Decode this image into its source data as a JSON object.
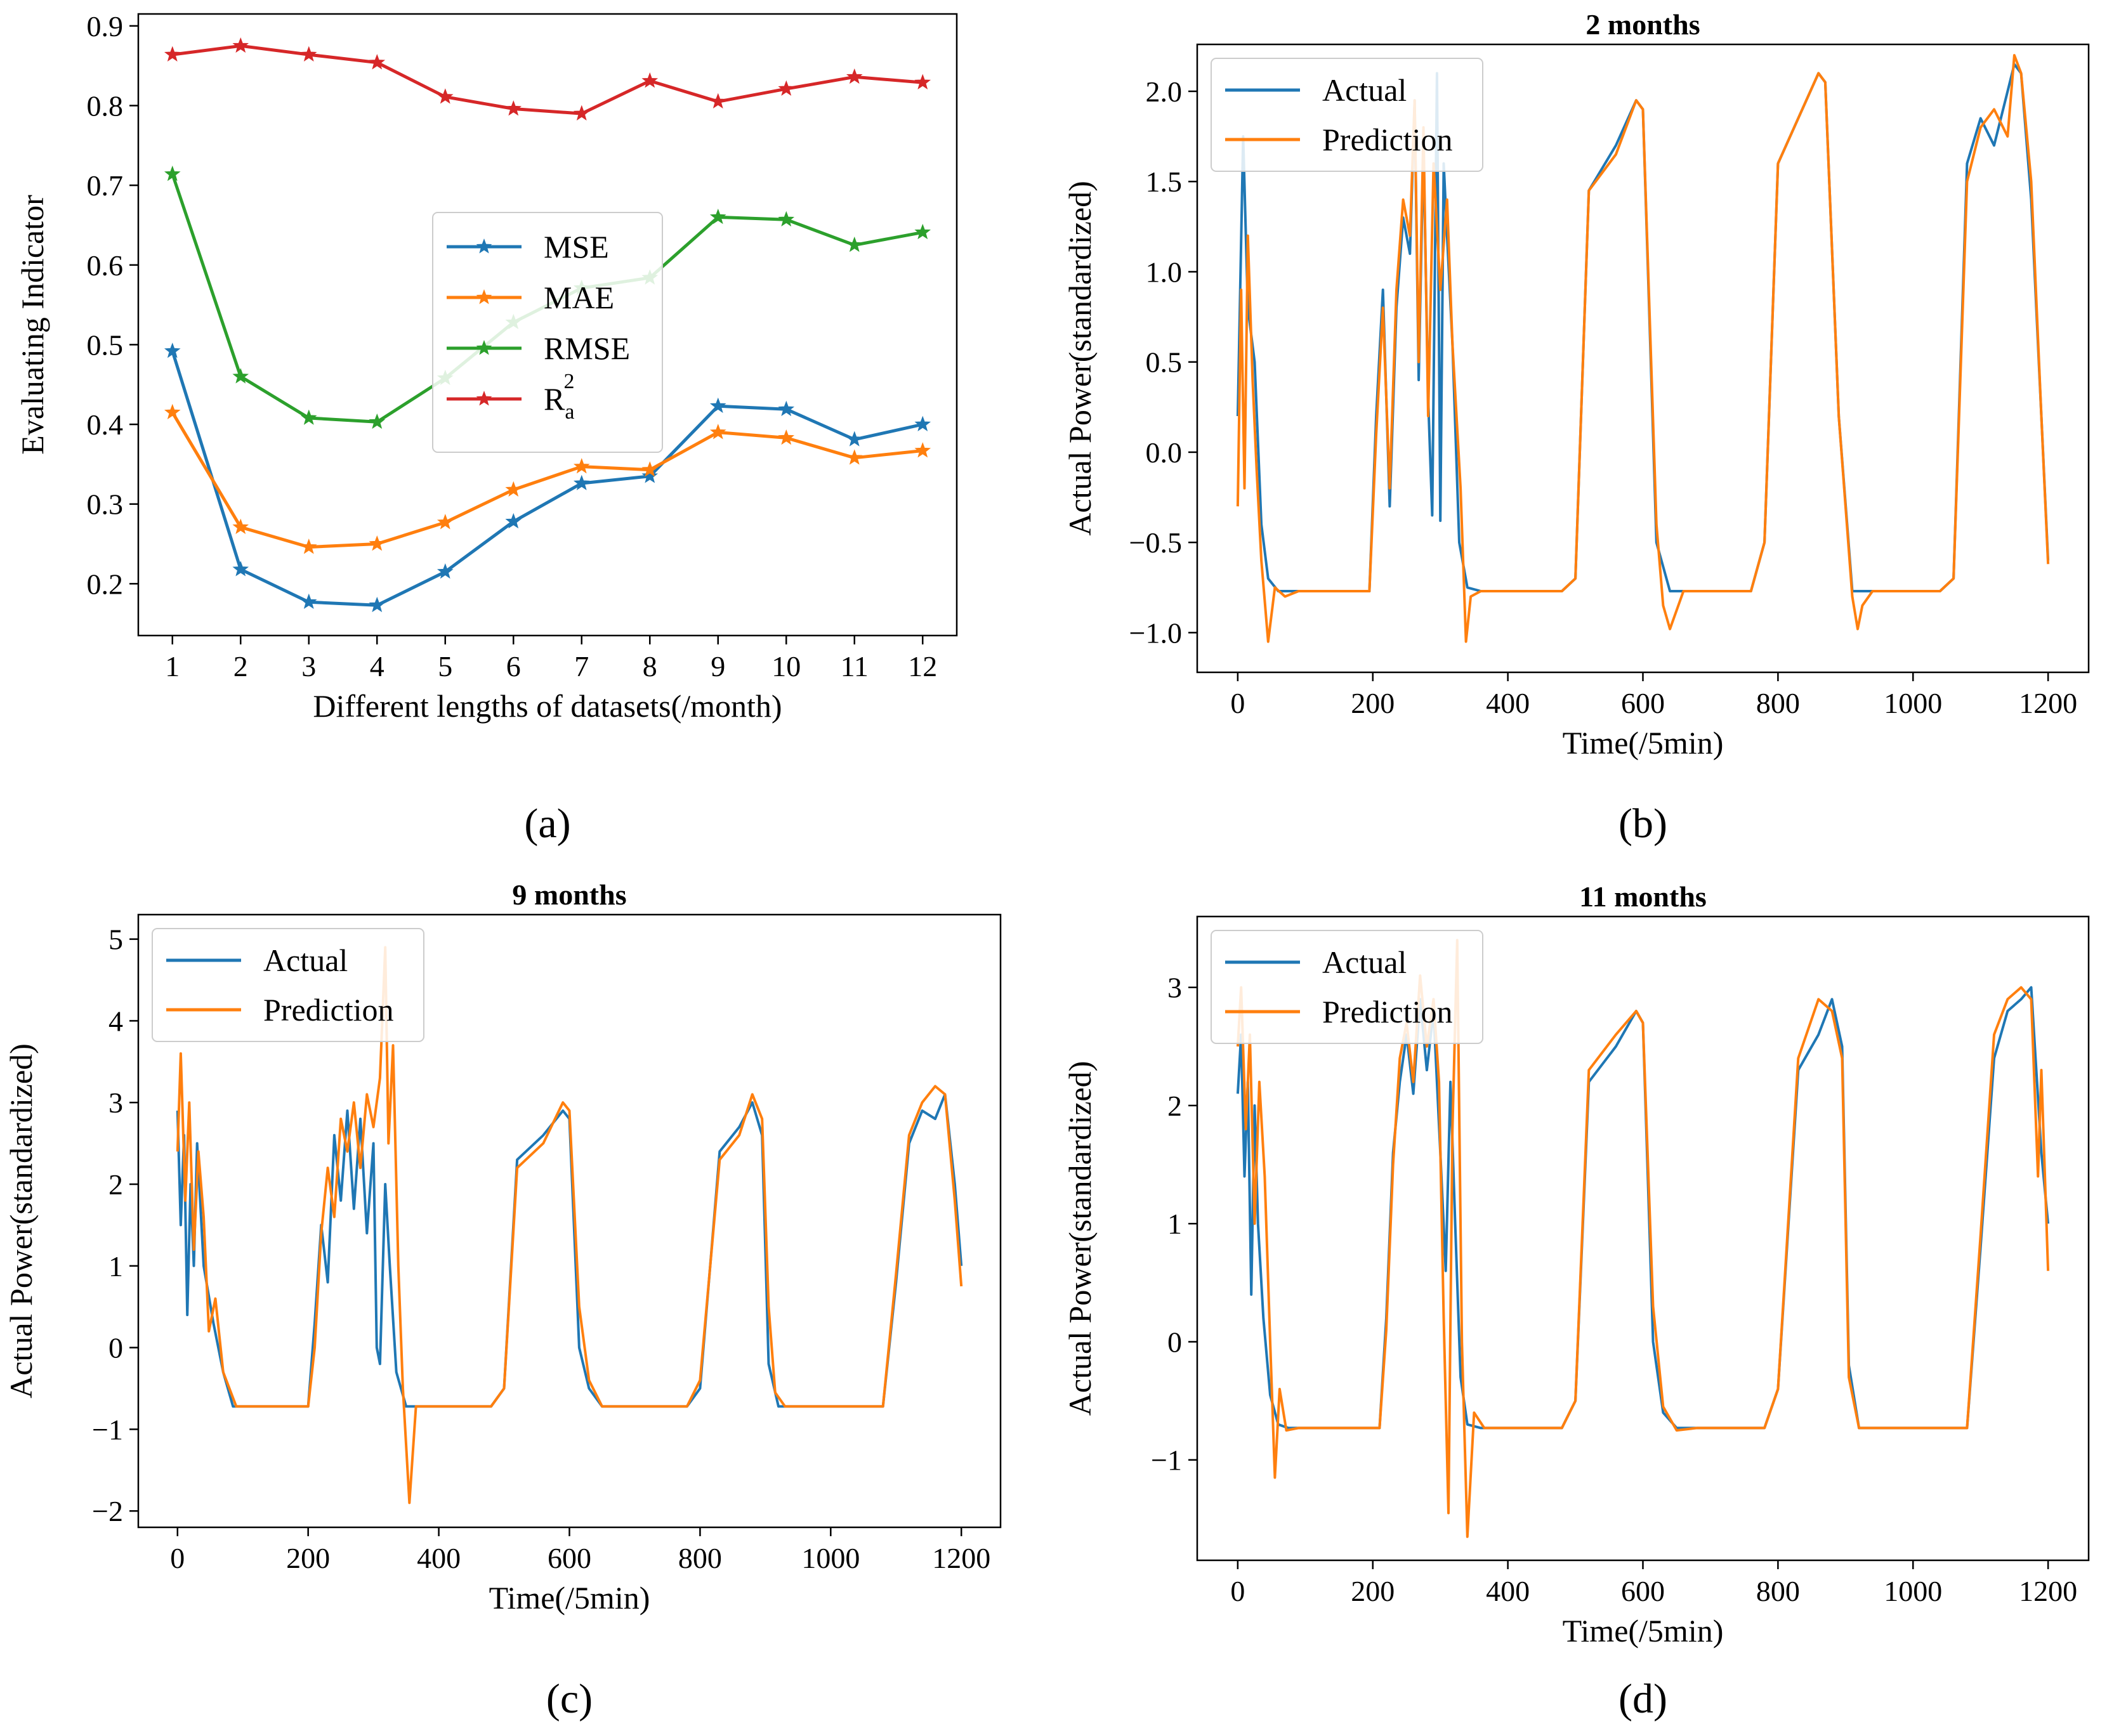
{
  "chart_data": [
    {
      "panel": "(a)",
      "type": "line",
      "title": "",
      "xlabel": "Different lengths of datasets(/month)",
      "ylabel": "Evaluating Indicator",
      "xlim": [
        0.5,
        12.5
      ],
      "ylim": [
        0.135,
        0.915
      ],
      "xticks": [
        1,
        2,
        3,
        4,
        5,
        6,
        7,
        8,
        9,
        10,
        11,
        12
      ],
      "yticks": [
        0.2,
        0.3,
        0.4,
        0.5,
        0.6,
        0.7,
        0.8,
        0.9
      ],
      "grid": false,
      "legend_position": "center-right",
      "x": [
        1,
        2,
        3,
        4,
        5,
        6,
        7,
        8,
        9,
        10,
        11,
        12
      ],
      "series": [
        {
          "name": "MSE",
          "color": "#1f77b4",
          "marker": "star",
          "values": [
            0.492,
            0.218,
            0.177,
            0.173,
            0.215,
            0.278,
            0.326,
            0.335,
            0.423,
            0.419,
            0.381,
            0.4
          ]
        },
        {
          "name": "MAE",
          "color": "#ff7f0e",
          "marker": "star",
          "values": [
            0.415,
            0.271,
            0.246,
            0.25,
            0.277,
            0.318,
            0.347,
            0.343,
            0.39,
            0.383,
            0.358,
            0.367
          ]
        },
        {
          "name": "RMSE",
          "color": "#2ca02c",
          "marker": "star",
          "values": [
            0.714,
            0.46,
            0.408,
            0.403,
            0.458,
            0.528,
            0.571,
            0.584,
            0.66,
            0.657,
            0.625,
            0.641
          ]
        },
        {
          "name": "R",
          "name_sup": "2",
          "name_sub": "a",
          "color": "#d62728",
          "marker": "star",
          "values": [
            0.864,
            0.875,
            0.864,
            0.854,
            0.811,
            0.796,
            0.79,
            0.831,
            0.805,
            0.821,
            0.836,
            0.829
          ]
        }
      ],
      "caption": "(a)"
    },
    {
      "panel": "(b)",
      "type": "line",
      "title": "2 months",
      "xlabel": "Time(/5min)",
      "ylabel": "Actual Power(standardized)",
      "xlim": [
        -60,
        1260
      ],
      "ylim": [
        -1.22,
        2.26
      ],
      "xticks": [
        0,
        200,
        400,
        600,
        800,
        1000,
        1200
      ],
      "yticks": [
        -1.0,
        -0.5,
        0.0,
        0.5,
        1.0,
        1.5,
        2.0
      ],
      "ytick_labels": [
        "−1.0",
        "−0.5",
        "0.0",
        "0.5",
        "1.0",
        "1.5",
        "2.0"
      ],
      "grid": false,
      "legend_position": "upper-left",
      "series": [
        {
          "name": "Actual",
          "color": "#1f77b4",
          "x": [
            0,
            8,
            15,
            25,
            35,
            45,
            60,
            80,
            150,
            195,
            205,
            215,
            225,
            235,
            245,
            255,
            262,
            268,
            275,
            282,
            288,
            295,
            300,
            305,
            310,
            318,
            328,
            340,
            360,
            400,
            480,
            500,
            520,
            560,
            590,
            600,
            620,
            640,
            680,
            760,
            780,
            800,
            830,
            860,
            870,
            890,
            910,
            930,
            1040,
            1060,
            1080,
            1100,
            1120,
            1140,
            1150,
            1160,
            1175,
            1190,
            1200
          ],
          "values": [
            0.2,
            1.75,
            0.8,
            0.5,
            -0.4,
            -0.7,
            -0.77,
            -0.77,
            -0.77,
            -0.77,
            0.2,
            0.9,
            -0.3,
            0.8,
            1.3,
            1.1,
            1.95,
            0.4,
            1.7,
            0.3,
            -0.35,
            2.1,
            -0.38,
            1.6,
            1.2,
            0.6,
            -0.5,
            -0.75,
            -0.77,
            -0.77,
            -0.77,
            -0.7,
            1.45,
            1.7,
            1.95,
            1.9,
            -0.5,
            -0.77,
            -0.77,
            -0.77,
            -0.5,
            1.6,
            1.85,
            2.1,
            2.05,
            0.2,
            -0.77,
            -0.77,
            -0.77,
            -0.7,
            1.6,
            1.85,
            1.7,
            2.0,
            2.15,
            2.1,
            1.4,
            0.2,
            -0.6
          ]
        },
        {
          "name": "Prediction",
          "color": "#ff7f0e",
          "x": [
            0,
            5,
            10,
            15,
            22,
            28,
            35,
            45,
            55,
            70,
            90,
            150,
            195,
            205,
            215,
            225,
            235,
            245,
            255,
            262,
            268,
            275,
            282,
            290,
            300,
            310,
            318,
            330,
            338,
            345,
            360,
            400,
            480,
            500,
            520,
            560,
            590,
            600,
            620,
            630,
            640,
            660,
            680,
            760,
            780,
            800,
            830,
            860,
            870,
            890,
            910,
            918,
            925,
            940,
            1040,
            1060,
            1080,
            1100,
            1120,
            1140,
            1150,
            1160,
            1175,
            1190,
            1200
          ],
          "values": [
            -0.3,
            0.9,
            -0.2,
            1.2,
            0.4,
            -0.1,
            -0.6,
            -1.05,
            -0.75,
            -0.8,
            -0.77,
            -0.77,
            -0.77,
            0.1,
            0.8,
            -0.2,
            0.9,
            1.4,
            1.2,
            1.95,
            0.5,
            1.8,
            0.2,
            1.6,
            0.9,
            1.4,
            0.6,
            -0.2,
            -1.05,
            -0.8,
            -0.77,
            -0.77,
            -0.77,
            -0.7,
            1.45,
            1.65,
            1.95,
            1.9,
            -0.4,
            -0.85,
            -0.98,
            -0.77,
            -0.77,
            -0.77,
            -0.5,
            1.6,
            1.85,
            2.1,
            2.05,
            0.2,
            -0.8,
            -0.98,
            -0.85,
            -0.77,
            -0.77,
            -0.7,
            1.5,
            1.8,
            1.9,
            1.75,
            2.2,
            2.1,
            1.5,
            0.2,
            -0.62
          ]
        }
      ],
      "caption": "(b)"
    },
    {
      "panel": "(c)",
      "type": "line",
      "title": "9 months",
      "xlabel": "Time(/5min)",
      "ylabel": "Actual Power(standardized)",
      "xlim": [
        -60,
        1260
      ],
      "ylim": [
        -2.2,
        5.3
      ],
      "xticks": [
        0,
        200,
        400,
        600,
        800,
        1000,
        1200
      ],
      "yticks": [
        -2,
        -1,
        0,
        1,
        2,
        3,
        4,
        5
      ],
      "ytick_labels": [
        "−2",
        "−1",
        "0",
        "1",
        "2",
        "3",
        "4",
        "5"
      ],
      "grid": false,
      "legend_position": "upper-left",
      "series": [
        {
          "name": "Actual",
          "color": "#1f77b4",
          "x": [
            0,
            5,
            10,
            15,
            20,
            25,
            30,
            40,
            55,
            70,
            85,
            150,
            200,
            210,
            220,
            230,
            240,
            250,
            260,
            270,
            280,
            290,
            300,
            305,
            310,
            318,
            325,
            335,
            350,
            380,
            480,
            500,
            520,
            560,
            590,
            600,
            615,
            630,
            650,
            680,
            780,
            800,
            830,
            860,
            880,
            895,
            905,
            920,
            1080,
            1100,
            1120,
            1140,
            1160,
            1175,
            1190,
            1200
          ],
          "values": [
            2.9,
            1.5,
            2.6,
            0.4,
            2.0,
            1.0,
            2.5,
            1.0,
            0.3,
            -0.3,
            -0.72,
            -0.72,
            -0.72,
            0.3,
            1.5,
            0.8,
            2.6,
            1.8,
            2.9,
            1.7,
            2.8,
            1.4,
            2.5,
            0.0,
            -0.2,
            2.0,
            1.0,
            -0.3,
            -0.72,
            -0.72,
            -0.72,
            -0.5,
            2.3,
            2.6,
            2.9,
            2.8,
            0.0,
            -0.5,
            -0.72,
            -0.72,
            -0.72,
            -0.5,
            2.4,
            2.7,
            3.0,
            2.6,
            -0.2,
            -0.72,
            -0.72,
            0.8,
            2.5,
            2.9,
            2.8,
            3.1,
            2.0,
            1.0
          ]
        },
        {
          "name": "Prediction",
          "color": "#ff7f0e",
          "x": [
            0,
            5,
            12,
            18,
            25,
            32,
            40,
            48,
            58,
            70,
            90,
            150,
            200,
            210,
            220,
            230,
            240,
            250,
            260,
            270,
            280,
            290,
            300,
            310,
            318,
            323,
            330,
            338,
            345,
            355,
            365,
            380,
            480,
            500,
            520,
            560,
            590,
            600,
            615,
            630,
            650,
            680,
            780,
            800,
            830,
            860,
            880,
            895,
            905,
            915,
            930,
            1080,
            1100,
            1120,
            1140,
            1160,
            1175,
            1190,
            1200
          ],
          "values": [
            2.4,
            3.6,
            1.8,
            3.0,
            1.2,
            2.4,
            1.6,
            0.2,
            0.6,
            -0.3,
            -0.72,
            -0.72,
            -0.72,
            0.0,
            1.4,
            2.2,
            1.6,
            2.8,
            2.4,
            3.0,
            2.2,
            3.1,
            2.7,
            3.3,
            4.9,
            2.5,
            3.7,
            1.0,
            -0.5,
            -1.9,
            -0.72,
            -0.72,
            -0.72,
            -0.5,
            2.2,
            2.5,
            3.0,
            2.9,
            0.5,
            -0.4,
            -0.72,
            -0.72,
            -0.72,
            -0.4,
            2.3,
            2.6,
            3.1,
            2.8,
            0.5,
            -0.55,
            -0.72,
            -0.72,
            0.9,
            2.6,
            3.0,
            3.2,
            3.1,
            1.8,
            0.75
          ]
        }
      ],
      "caption": "(c)"
    },
    {
      "panel": "(d)",
      "type": "line",
      "title": "11 months",
      "xlabel": "Time(/5min)",
      "ylabel": "Actual Power(standardized)",
      "xlim": [
        -60,
        1260
      ],
      "ylim": [
        -1.85,
        3.6
      ],
      "xticks": [
        0,
        200,
        400,
        600,
        800,
        1000,
        1200
      ],
      "yticks": [
        -1,
        0,
        1,
        2,
        3
      ],
      "ytick_labels": [
        "−1",
        "0",
        "1",
        "2",
        "3"
      ],
      "grid": false,
      "legend_position": "upper-left",
      "series": [
        {
          "name": "Actual",
          "color": "#1f77b4",
          "x": [
            0,
            5,
            10,
            15,
            20,
            25,
            30,
            38,
            48,
            60,
            75,
            150,
            210,
            220,
            230,
            240,
            250,
            260,
            270,
            280,
            290,
            300,
            308,
            315,
            322,
            330,
            340,
            360,
            480,
            500,
            520,
            560,
            590,
            600,
            615,
            630,
            650,
            680,
            780,
            800,
            830,
            860,
            880,
            895,
            905,
            920,
            1080,
            1100,
            1120,
            1140,
            1160,
            1175,
            1190,
            1200
          ],
          "values": [
            2.1,
            2.6,
            1.4,
            2.2,
            0.4,
            2.0,
            1.0,
            0.2,
            -0.45,
            -0.7,
            -0.73,
            -0.73,
            -0.73,
            0.2,
            1.6,
            2.2,
            2.6,
            2.1,
            2.9,
            2.3,
            2.8,
            1.6,
            0.6,
            2.2,
            1.0,
            -0.3,
            -0.7,
            -0.73,
            -0.73,
            -0.5,
            2.2,
            2.5,
            2.8,
            2.7,
            0.0,
            -0.6,
            -0.73,
            -0.73,
            -0.73,
            -0.4,
            2.3,
            2.6,
            2.9,
            2.5,
            -0.2,
            -0.73,
            -0.73,
            0.8,
            2.4,
            2.8,
            2.9,
            3.0,
            1.6,
            1.0
          ]
        },
        {
          "name": "Prediction",
          "color": "#ff7f0e",
          "x": [
            0,
            5,
            12,
            18,
            25,
            32,
            40,
            48,
            55,
            62,
            72,
            90,
            150,
            210,
            220,
            230,
            240,
            250,
            260,
            270,
            280,
            290,
            298,
            305,
            312,
            318,
            325,
            332,
            340,
            350,
            365,
            480,
            500,
            520,
            560,
            590,
            600,
            615,
            630,
            650,
            680,
            780,
            800,
            830,
            860,
            880,
            895,
            905,
            920,
            1080,
            1100,
            1120,
            1140,
            1160,
            1175,
            1185,
            1190,
            1200
          ],
          "values": [
            2.5,
            3.0,
            1.8,
            2.6,
            1.0,
            2.2,
            1.4,
            0.0,
            -1.15,
            -0.4,
            -0.75,
            -0.73,
            -0.73,
            -0.73,
            0.1,
            1.5,
            2.4,
            2.7,
            2.2,
            3.1,
            2.5,
            2.9,
            2.2,
            0.2,
            -1.45,
            1.8,
            3.4,
            0.0,
            -1.65,
            -0.6,
            -0.73,
            -0.73,
            -0.5,
            2.3,
            2.6,
            2.8,
            2.7,
            0.3,
            -0.55,
            -0.75,
            -0.73,
            -0.73,
            -0.4,
            2.4,
            2.9,
            2.8,
            2.4,
            -0.3,
            -0.73,
            -0.73,
            0.9,
            2.6,
            2.9,
            3.0,
            2.9,
            1.4,
            2.3,
            0.6
          ]
        }
      ],
      "caption": "(d)"
    }
  ]
}
